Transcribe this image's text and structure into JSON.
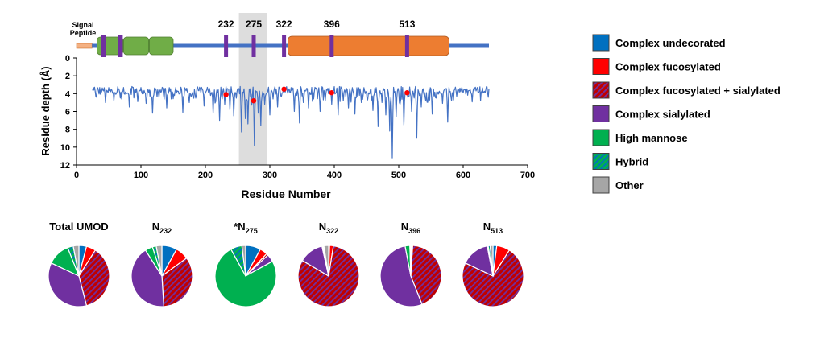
{
  "chart_data": [
    {
      "type": "domain-diagram",
      "label": "Signal Peptide",
      "sites": [
        {
          "residue": 232,
          "label": "232"
        },
        {
          "residue": 275,
          "label": "275"
        },
        {
          "residue": 322,
          "label": "322"
        },
        {
          "residue": 396,
          "label": "396"
        },
        {
          "residue": 513,
          "label": "513"
        }
      ],
      "other_glyco_marks": [
        42,
        68
      ],
      "signal_peptide_range": [
        0,
        24
      ],
      "backbone_range": [
        24,
        640
      ],
      "green_domains": [
        [
          32,
          72
        ],
        [
          73,
          112
        ],
        [
          113,
          150
        ]
      ],
      "orange_domain": [
        328,
        578
      ],
      "colors": {
        "green": "#70ad47",
        "orange": "#ed7d31",
        "backbone": "#4472c4",
        "mark": "#7030a0",
        "signal": "#f4b183"
      }
    },
    {
      "type": "line",
      "xlabel": "Residue Number",
      "ylabel": "Residue depth (Å)",
      "xlim": [
        0,
        700
      ],
      "ylim": [
        0,
        12
      ],
      "y_inverted": true,
      "xticks": [
        "0",
        "100",
        "200",
        "300",
        "400",
        "500",
        "600",
        "700"
      ],
      "yticks": [
        "0",
        "2",
        "4",
        "6",
        "8",
        "10",
        "12"
      ],
      "highlight_region": [
        252,
        295
      ],
      "series_color": "#4472c4",
      "baseline_depth": 3.4,
      "residue_range": [
        25,
        640
      ],
      "dips": [
        [
          30,
          4.3
        ],
        [
          45,
          5.0
        ],
        [
          58,
          4.8
        ],
        [
          70,
          4.6
        ],
        [
          82,
          5.5
        ],
        [
          95,
          4.9
        ],
        [
          108,
          5.1
        ],
        [
          118,
          6.2
        ],
        [
          128,
          4.4
        ],
        [
          140,
          5.6
        ],
        [
          152,
          4.2
        ],
        [
          165,
          6.1
        ],
        [
          175,
          5.0
        ],
        [
          185,
          4.5
        ],
        [
          198,
          5.4
        ],
        [
          208,
          4.2
        ],
        [
          212,
          6.2
        ],
        [
          216,
          4.9
        ],
        [
          222,
          7.0
        ],
        [
          230,
          5.2
        ],
        [
          238,
          5.8
        ],
        [
          244,
          6.5
        ],
        [
          248,
          4.5
        ],
        [
          256,
          8.3
        ],
        [
          262,
          6.8
        ],
        [
          266,
          7.4
        ],
        [
          272,
          5.3
        ],
        [
          276,
          9.8
        ],
        [
          282,
          6.2
        ],
        [
          286,
          7.6
        ],
        [
          292,
          5.2
        ],
        [
          300,
          6.4
        ],
        [
          305,
          4.6
        ],
        [
          312,
          5.5
        ],
        [
          318,
          4.3
        ],
        [
          338,
          6.0
        ],
        [
          346,
          7.3
        ],
        [
          352,
          5.0
        ],
        [
          360,
          5.6
        ],
        [
          368,
          4.6
        ],
        [
          378,
          6.0
        ],
        [
          386,
          4.8
        ],
        [
          396,
          5.2
        ],
        [
          406,
          6.4
        ],
        [
          414,
          4.8
        ],
        [
          422,
          5.6
        ],
        [
          432,
          6.3
        ],
        [
          442,
          5.0
        ],
        [
          452,
          4.6
        ],
        [
          460,
          5.9
        ],
        [
          468,
          7.7
        ],
        [
          474,
          5.0
        ],
        [
          480,
          6.4
        ],
        [
          486,
          8.2
        ],
        [
          490,
          11.2
        ],
        [
          496,
          6.6
        ],
        [
          502,
          5.2
        ],
        [
          508,
          7.5
        ],
        [
          514,
          4.4
        ],
        [
          520,
          6.0
        ],
        [
          528,
          9.0
        ],
        [
          535,
          5.5
        ],
        [
          542,
          4.8
        ],
        [
          552,
          6.3
        ],
        [
          558,
          4.5
        ],
        [
          568,
          5.1
        ],
        [
          576,
          7.2
        ],
        [
          582,
          4.8
        ],
        [
          590,
          4.3
        ],
        [
          600,
          3.9
        ],
        [
          612,
          3.9
        ],
        [
          628,
          3.8
        ]
      ],
      "glycosite_points": [
        {
          "residue": 232,
          "depth": 4.1
        },
        {
          "residue": 275,
          "depth": 4.8
        },
        {
          "residue": 322,
          "depth": 3.5
        },
        {
          "residue": 396,
          "depth": 3.9
        },
        {
          "residue": 513,
          "depth": 3.9
        }
      ],
      "point_color": "#ff0000"
    },
    {
      "type": "pie",
      "title": "Total UMOD",
      "slices": [
        {
          "category": "Complex undecorated",
          "value": 4
        },
        {
          "category": "Complex fucosylated",
          "value": 5
        },
        {
          "category": "Complex fucosylated + sialylated",
          "value": 37
        },
        {
          "category": "Complex sialylated",
          "value": 36
        },
        {
          "category": "High mannose",
          "value": 12
        },
        {
          "category": "Hybrid",
          "value": 3
        },
        {
          "category": "Other",
          "value": 3
        }
      ]
    },
    {
      "type": "pie",
      "title": "N232",
      "title_main": "N",
      "title_sub": "232",
      "slices": [
        {
          "category": "Complex undecorated",
          "value": 8
        },
        {
          "category": "Complex fucosylated",
          "value": 7
        },
        {
          "category": "Complex fucosylated + sialylated",
          "value": 34
        },
        {
          "category": "Complex sialylated",
          "value": 42
        },
        {
          "category": "High mannose",
          "value": 4
        },
        {
          "category": "Hybrid",
          "value": 2
        },
        {
          "category": "Other",
          "value": 3
        }
      ]
    },
    {
      "type": "pie",
      "title": "*N275",
      "title_main": "*N",
      "title_sub": "275",
      "slices": [
        {
          "category": "Complex undecorated",
          "value": 8
        },
        {
          "category": "Complex fucosylated",
          "value": 4
        },
        {
          "category": "Complex fucosylated + sialylated",
          "value": 1
        },
        {
          "category": "Complex sialylated",
          "value": 4
        },
        {
          "category": "High mannose",
          "value": 75
        },
        {
          "category": "Hybrid",
          "value": 6
        },
        {
          "category": "Other",
          "value": 2
        }
      ]
    },
    {
      "type": "pie",
      "title": "N322",
      "title_main": "N",
      "title_sub": "322",
      "slices": [
        {
          "category": "Complex undecorated",
          "value": 0.5
        },
        {
          "category": "Complex fucosylated",
          "value": 2
        },
        {
          "category": "Complex fucosylated + sialylated",
          "value": 81
        },
        {
          "category": "Complex sialylated",
          "value": 13
        },
        {
          "category": "High mannose",
          "value": 0.5
        },
        {
          "category": "Hybrid",
          "value": 0.5
        },
        {
          "category": "Other",
          "value": 2.5
        }
      ]
    },
    {
      "type": "pie",
      "title": "N396",
      "title_main": "N",
      "title_sub": "396",
      "slices": [
        {
          "category": "Complex undecorated",
          "value": 0.5
        },
        {
          "category": "Complex fucosylated",
          "value": 0.5
        },
        {
          "category": "Complex fucosylated + sialylated",
          "value": 43
        },
        {
          "category": "Complex sialylated",
          "value": 53
        },
        {
          "category": "High mannose",
          "value": 2.5
        },
        {
          "category": "Hybrid",
          "value": 0.5
        },
        {
          "category": "Other",
          "value": 0
        }
      ]
    },
    {
      "type": "pie",
      "title": "N513",
      "title_main": "N",
      "title_sub": "513",
      "slices": [
        {
          "category": "Complex undecorated",
          "value": 2
        },
        {
          "category": "Complex fucosylated",
          "value": 7
        },
        {
          "category": "Complex fucosylated + sialylated",
          "value": 73
        },
        {
          "category": "Complex sialylated",
          "value": 15
        },
        {
          "category": "High mannose",
          "value": 0.5
        },
        {
          "category": "Hybrid",
          "value": 1
        },
        {
          "category": "Other",
          "value": 1.5
        }
      ]
    }
  ],
  "legend": [
    {
      "label": "Complex undecorated",
      "color": "#0070c0",
      "pattern": "solid"
    },
    {
      "label": "Complex fucosylated",
      "color": "#ff0000",
      "pattern": "solid"
    },
    {
      "label": "Complex fucosylated + sialylated",
      "color": "#c00000",
      "stripe": "#7030a0",
      "pattern": "hatch"
    },
    {
      "label": "Complex sialylated",
      "color": "#7030a0",
      "pattern": "solid"
    },
    {
      "label": "High mannose",
      "color": "#00b050",
      "pattern": "solid"
    },
    {
      "label": "Hybrid",
      "color": "#00b050",
      "stripe": "#0070c0",
      "pattern": "hatch"
    },
    {
      "label": "Other",
      "color": "#a6a6a6",
      "pattern": "solid"
    }
  ]
}
